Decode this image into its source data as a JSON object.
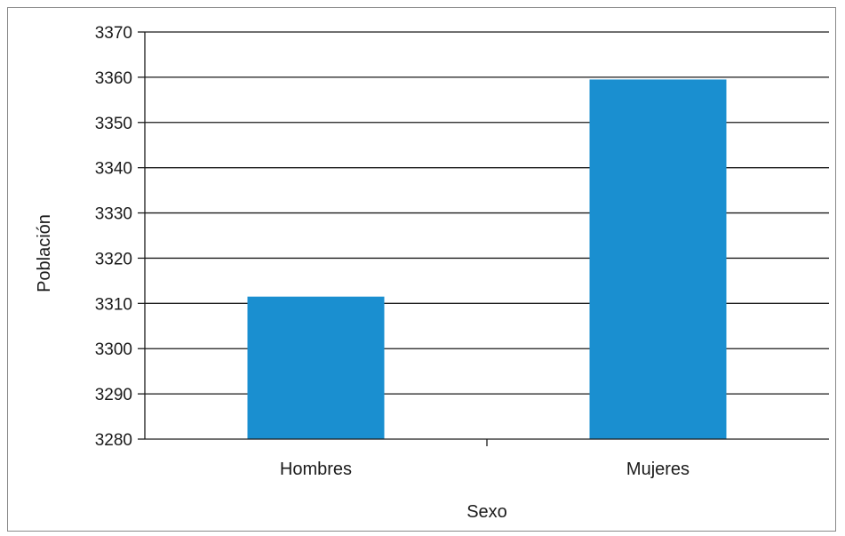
{
  "chart_data": {
    "type": "bar",
    "categories": [
      "Hombres",
      "Mujeres"
    ],
    "values": [
      3311.5,
      3359.5
    ],
    "title": "",
    "xlabel": "Sexo",
    "ylabel": "Población",
    "ylim": [
      3280,
      3370
    ],
    "yticks": [
      3280,
      3290,
      3300,
      3310,
      3320,
      3330,
      3340,
      3350,
      3360,
      3370
    ],
    "ytick_labels": [
      "3280",
      "3290",
      "3300",
      "3310",
      "3320",
      "3330",
      "3340",
      "3350",
      "3360",
      "3370"
    ],
    "grid": true,
    "legend": "none",
    "bar_color": "#1a8fd0",
    "grid_color": "#1a1a1a"
  }
}
